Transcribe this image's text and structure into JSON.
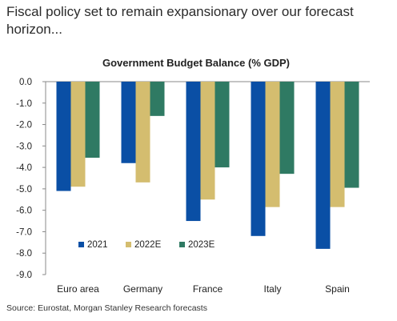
{
  "headline": "Fiscal policy set to remain expansionary over our forecast horizon...",
  "source": "Source: Eurostat, Morgan Stanley Research forecasts",
  "chart_data": {
    "type": "bar",
    "title": "Government Budget Balance (% GDP)",
    "xlabel": "",
    "ylabel": "",
    "ylim": [
      -9.0,
      0.0
    ],
    "yticks": [
      "0.0",
      "-1.0",
      "-2.0",
      "-3.0",
      "-4.0",
      "-5.0",
      "-6.0",
      "-7.0",
      "-8.0",
      "-9.0"
    ],
    "categories": [
      "Euro area",
      "Germany",
      "France",
      "Italy",
      "Spain"
    ],
    "series": [
      {
        "name": "2021",
        "color": "#0a4fa5",
        "values": [
          -5.1,
          -3.8,
          -6.5,
          -7.2,
          -7.8
        ]
      },
      {
        "name": "2022E",
        "color": "#d4bd6f",
        "values": [
          -4.9,
          -4.7,
          -5.5,
          -5.85,
          -5.85
        ]
      },
      {
        "name": "2023E",
        "color": "#2f7a63",
        "values": [
          -3.55,
          -1.6,
          -4.0,
          -4.3,
          -4.95
        ]
      }
    ],
    "legend_position": "bottom-left inside",
    "grid": false
  }
}
